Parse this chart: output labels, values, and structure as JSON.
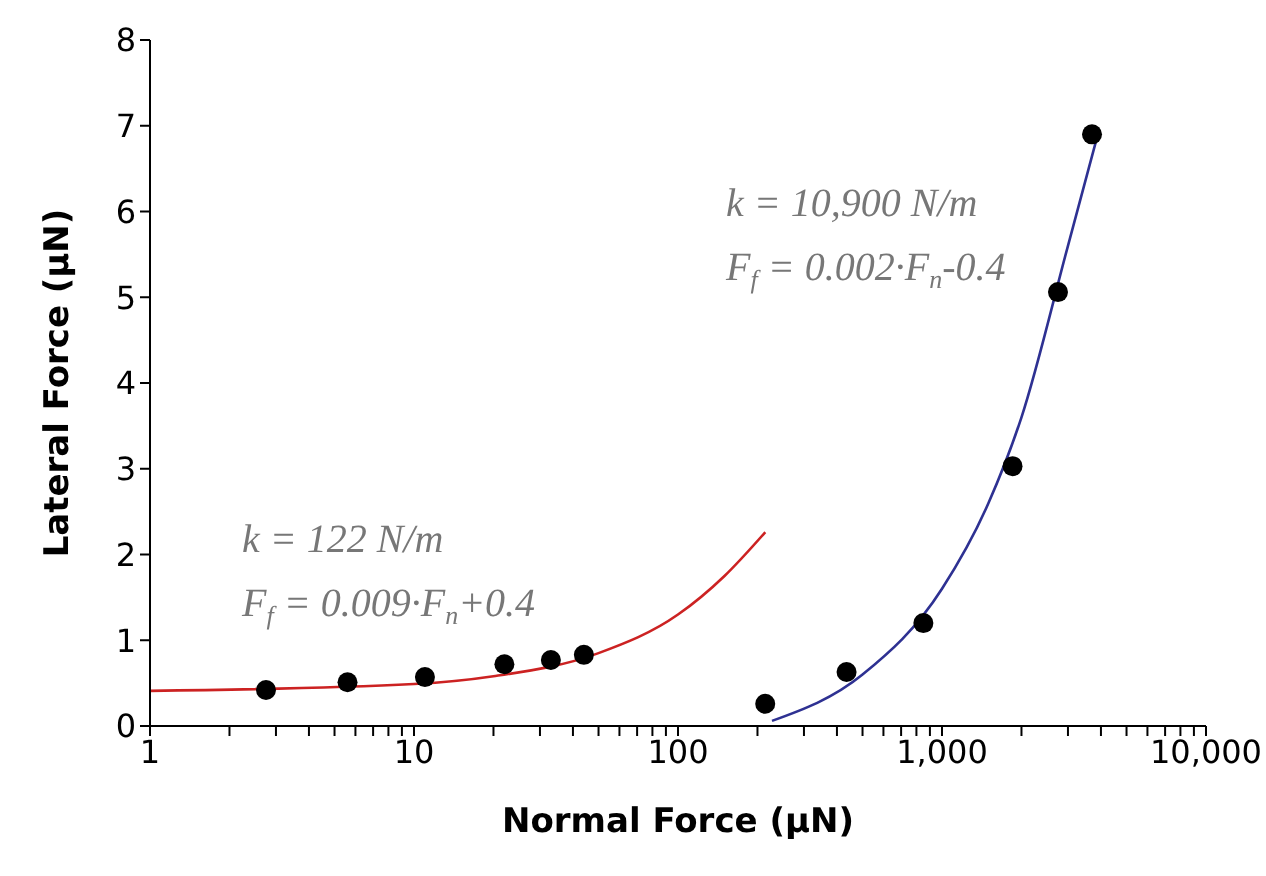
{
  "chart_data": {
    "type": "scatter",
    "xlabel": "Normal Force (μN)",
    "ylabel": "Lateral Force (μN)",
    "log": "x",
    "xlim": [
      1,
      10000
    ],
    "ylim": [
      0,
      8
    ],
    "xticks": [
      1,
      {
        "value": 2,
        "label": null
      },
      {
        "value": 3,
        "label": null
      },
      {
        "value": 4,
        "label": null
      },
      {
        "value": 5,
        "label": null
      },
      {
        "value": 6,
        "label": null
      },
      {
        "value": 7,
        "label": null
      },
      {
        "value": 8,
        "label": null
      },
      {
        "value": 9,
        "label": null
      },
      10,
      {
        "value": 20,
        "label": null
      },
      {
        "value": 30,
        "label": null
      },
      {
        "value": 40,
        "label": null
      },
      {
        "value": 50,
        "label": null
      },
      {
        "value": 60,
        "label": null
      },
      {
        "value": 70,
        "label": null
      },
      {
        "value": 80,
        "label": null
      },
      {
        "value": 90,
        "label": null
      },
      100,
      {
        "value": 200,
        "label": null
      },
      {
        "value": 300,
        "label": null
      },
      {
        "value": 400,
        "label": null
      },
      {
        "value": 500,
        "label": null
      },
      {
        "value": 600,
        "label": null
      },
      {
        "value": 700,
        "label": null
      },
      {
        "value": 800,
        "label": null
      },
      {
        "value": 900,
        "label": null
      },
      {
        "value": 1000,
        "label": "1,000"
      },
      {
        "value": 2000,
        "label": null
      },
      {
        "value": 3000,
        "label": null
      },
      {
        "value": 4000,
        "label": null
      },
      {
        "value": 5000,
        "label": null
      },
      {
        "value": 6000,
        "label": null
      },
      {
        "value": 7000,
        "label": null
      },
      {
        "value": 8000,
        "label": null
      },
      {
        "value": 9000,
        "label": null
      },
      {
        "value": 10000,
        "label": "10,000"
      }
    ],
    "yticks": [
      0,
      1,
      2,
      3,
      4,
      5,
      6,
      7,
      8
    ],
    "grid": false,
    "marker": "circle",
    "series": [
      {
        "color": "#000000",
        "x": [
          2.75,
          5.6,
          11,
          22,
          33,
          44,
          214,
          435,
          850,
          1850,
          2750,
          3700
        ],
        "values": [
          0.42,
          0.51,
          0.57,
          0.72,
          0.77,
          0.83,
          0.26,
          0.63,
          1.2,
          3.03,
          5.06,
          6.9
        ]
      },
      {
        "type": "line",
        "color": "#cc2222",
        "marker": "none",
        "line_style": "solid",
        "x": [
          1,
          10,
          20,
          50,
          100,
          150,
          214
        ],
        "values": [
          0.41,
          0.49,
          0.58,
          0.85,
          1.3,
          1.75,
          2.26
        ]
      },
      {
        "type": "line",
        "color": "#2e3192",
        "marker": "none",
        "line_style": "solid",
        "x": [
          227,
          500,
          1000,
          1500,
          2000,
          3000,
          3870
        ],
        "values": [
          0.06,
          0.6,
          1.6,
          2.6,
          3.6,
          5.6,
          6.87
        ]
      }
    ],
    "annotations": [
      "k = 122 N/m",
      "F$_{f}$ = 0.009·F$_{n}$+0.4",
      "k = 10,900 N/m",
      "F$_{f}$ = 0.002·F$_{n}$-0.4"
    ]
  }
}
